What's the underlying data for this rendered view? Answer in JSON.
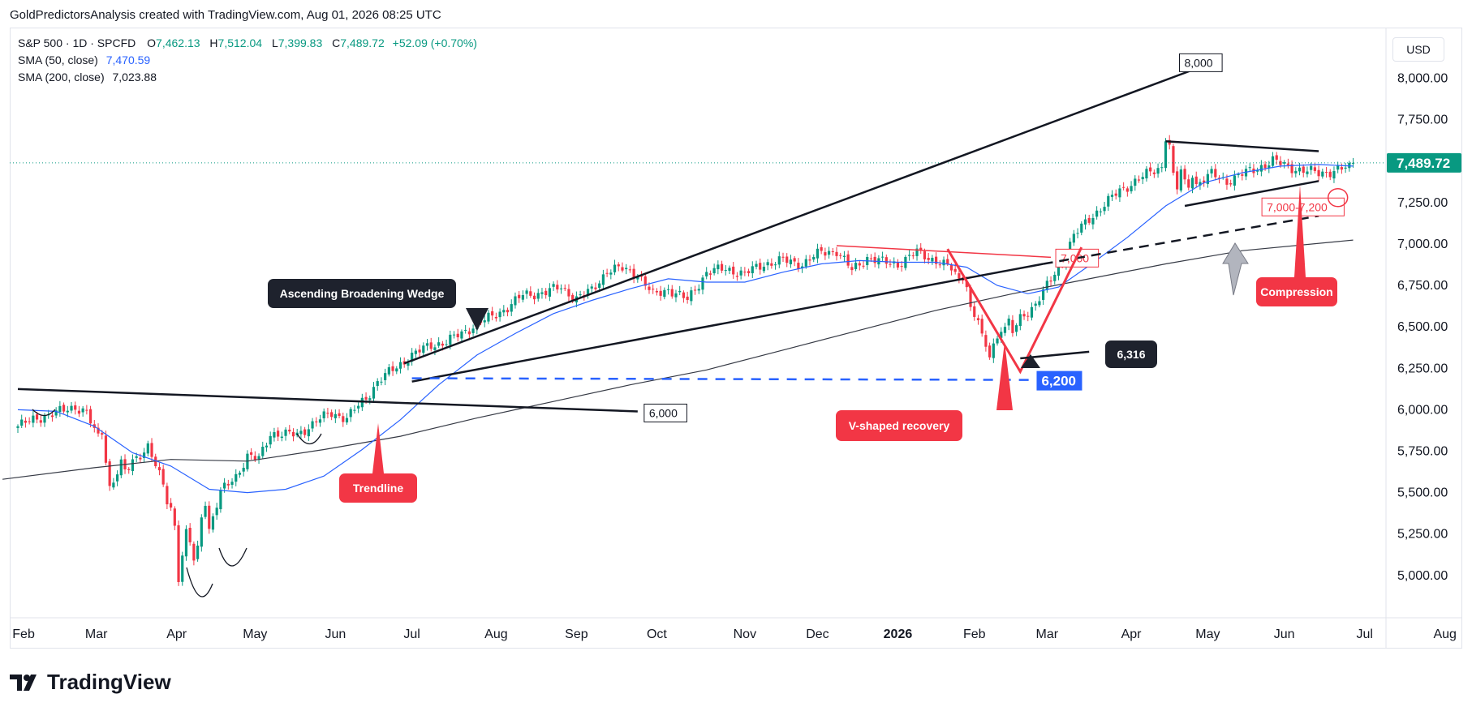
{
  "header": {
    "attribution": "GoldPredictorsAnalysis created with TradingView.com, Aug 01, 2026 08:25 UTC"
  },
  "legend": {
    "symbol": "S&P 500 · 1D · SPCFD",
    "o_label": "O",
    "open": "7,462.13",
    "h_label": "H",
    "high": "7,512.04",
    "l_label": "L",
    "low": "7,399.83",
    "c_label": "C",
    "close": "7,489.72",
    "change": "+52.09 (+0.70%)",
    "sma50_label": "SMA (50, close)",
    "sma50_value": "7,470.59",
    "sma200_label": "SMA (200, close)",
    "sma200_value": "7,023.88"
  },
  "currency": "USD",
  "brand": "TradingView",
  "colors": {
    "up": "#089981",
    "down": "#f23645",
    "sma50": "#2962ff",
    "sma200": "#363a45",
    "annot_red": "#f23645",
    "annot_dark": "#1e222d",
    "annot_blue": "#2962ff"
  },
  "chart_data": {
    "type": "candlestick",
    "title": "S&P 500 · 1D · SPCFD",
    "ylim": [
      4780,
      8340
    ],
    "y_ticks": [
      "8,000.00",
      "7,750.00",
      "7,500.00",
      "7,250.00",
      "7,000.00",
      "6,750.00",
      "6,500.00",
      "6,250.00",
      "6,000.00",
      "5,750.00",
      "5,500.00",
      "5,250.00",
      "5,000.00"
    ],
    "y_tick_values": [
      8000,
      7750,
      7500,
      7250,
      7000,
      6750,
      6500,
      6250,
      6000,
      5750,
      5500,
      5250,
      5000
    ],
    "x_ticks": [
      "Feb",
      "Mar",
      "Apr",
      "May",
      "Jun",
      "Jul",
      "Aug",
      "Sep",
      "Oct",
      "Nov",
      "Dec",
      "2026",
      "Feb",
      "Mar",
      "Apr",
      "May",
      "Jun",
      "Jul",
      "Aug"
    ],
    "x_tick_pos": [
      1.5,
      20.5,
      41.5,
      62,
      83,
      103,
      125,
      146,
      167,
      190,
      209,
      230,
      250,
      269,
      291,
      311,
      331,
      352,
      373
    ],
    "price_label": "7,489.72",
    "price_value": 7489.72,
    "ohlc_anchors": [
      [
        0,
        5900
      ],
      [
        5,
        5950
      ],
      [
        10,
        5980
      ],
      [
        15,
        6020
      ],
      [
        18,
        5980
      ],
      [
        20,
        5870
      ],
      [
        23,
        5760
      ],
      [
        27,
        5560
      ],
      [
        30,
        5690
      ],
      [
        34,
        5780
      ],
      [
        38,
        5540
      ],
      [
        41,
        5280
      ],
      [
        42,
        4950
      ],
      [
        44,
        5100
      ],
      [
        47,
        5350
      ],
      [
        50,
        5280
      ],
      [
        53,
        5500
      ],
      [
        57,
        5600
      ],
      [
        60,
        5720
      ],
      [
        63,
        5700
      ],
      [
        66,
        5860
      ],
      [
        70,
        5850
      ],
      [
        73,
        5850
      ],
      [
        78,
        5930
      ],
      [
        82,
        5980
      ],
      [
        86,
        5950
      ],
      [
        91,
        6070
      ],
      [
        94,
        6170
      ],
      [
        98,
        6240
      ],
      [
        103,
        6330
      ],
      [
        108,
        6390
      ],
      [
        112,
        6410
      ],
      [
        116,
        6460
      ],
      [
        120,
        6520
      ],
      [
        124,
        6560
      ],
      [
        128,
        6620
      ],
      [
        132,
        6690
      ],
      [
        138,
        6710
      ],
      [
        142,
        6740
      ],
      [
        146,
        6670
      ],
      [
        150,
        6720
      ],
      [
        154,
        6840
      ],
      [
        158,
        6850
      ],
      [
        162,
        6820
      ],
      [
        166,
        6690
      ],
      [
        170,
        6730
      ],
      [
        175,
        6660
      ],
      [
        180,
        6830
      ],
      [
        185,
        6850
      ],
      [
        190,
        6820
      ],
      [
        195,
        6880
      ],
      [
        200,
        6900
      ],
      [
        205,
        6880
      ],
      [
        210,
        6950
      ],
      [
        214,
        6960
      ],
      [
        218,
        6840
      ],
      [
        222,
        6920
      ],
      [
        226,
        6890
      ],
      [
        230,
        6880
      ],
      [
        235,
        6950
      ],
      [
        240,
        6900
      ],
      [
        244,
        6850
      ],
      [
        248,
        6720
      ],
      [
        252,
        6560
      ],
      [
        256,
        6350
      ],
      [
        259,
        6420
      ],
      [
        262,
        6550
      ],
      [
        266,
        6640
      ],
      [
        270,
        6780
      ],
      [
        273,
        6900
      ],
      [
        276,
        7050
      ],
      [
        280,
        7150
      ],
      [
        284,
        7240
      ],
      [
        288,
        7320
      ],
      [
        292,
        7380
      ],
      [
        296,
        7430
      ],
      [
        300,
        7480
      ],
      [
        304,
        7510
      ],
      [
        308,
        7360
      ],
      [
        312,
        7420
      ],
      [
        316,
        7380
      ],
      [
        320,
        7420
      ],
      [
        324,
        7460
      ],
      [
        328,
        7500
      ],
      [
        332,
        7470
      ],
      [
        336,
        7440
      ],
      [
        340,
        7430
      ],
      [
        344,
        7440
      ],
      [
        348,
        7462
      ],
      [
        349,
        7490
      ]
    ],
    "dip_overrides": [
      [
        22,
        5850
      ],
      [
        23,
        5680
      ],
      [
        24,
        5540
      ],
      [
        25,
        5560
      ],
      [
        26,
        5610
      ],
      [
        27,
        5700
      ],
      [
        28,
        5640
      ],
      [
        40,
        5410
      ],
      [
        41,
        5300
      ],
      [
        42,
        4960
      ],
      [
        43,
        5120
      ],
      [
        44,
        5280
      ],
      [
        45,
        5200
      ],
      [
        46,
        5090
      ],
      [
        47,
        5180
      ],
      [
        48,
        5350
      ],
      [
        49,
        5420
      ],
      [
        247,
        6780
      ],
      [
        248,
        6740
      ],
      [
        249,
        6620
      ],
      [
        250,
        6560
      ],
      [
        251,
        6540
      ],
      [
        252,
        6460
      ],
      [
        253,
        6380
      ],
      [
        254,
        6316
      ],
      [
        255,
        6400
      ],
      [
        256,
        6430
      ],
      [
        257,
        6470
      ],
      [
        258,
        6500
      ],
      [
        259,
        6550
      ],
      [
        300,
        7620
      ],
      [
        301,
        7600
      ],
      [
        302,
        7430
      ],
      [
        303,
        7330
      ],
      [
        304,
        7450
      ],
      [
        305,
        7390
      ],
      [
        306,
        7340
      ],
      [
        307,
        7400
      ]
    ],
    "sma50_points": [
      [
        0,
        6000
      ],
      [
        10,
        5990
      ],
      [
        20,
        5900
      ],
      [
        30,
        5740
      ],
      [
        40,
        5660
      ],
      [
        50,
        5520
      ],
      [
        60,
        5500
      ],
      [
        70,
        5520
      ],
      [
        80,
        5600
      ],
      [
        90,
        5760
      ],
      [
        100,
        5940
      ],
      [
        110,
        6150
      ],
      [
        120,
        6330
      ],
      [
        130,
        6460
      ],
      [
        140,
        6580
      ],
      [
        150,
        6660
      ],
      [
        160,
        6730
      ],
      [
        170,
        6790
      ],
      [
        180,
        6770
      ],
      [
        190,
        6770
      ],
      [
        200,
        6830
      ],
      [
        210,
        6880
      ],
      [
        220,
        6900
      ],
      [
        230,
        6890
      ],
      [
        240,
        6890
      ],
      [
        248,
        6860
      ],
      [
        256,
        6750
      ],
      [
        264,
        6700
      ],
      [
        272,
        6740
      ],
      [
        280,
        6870
      ],
      [
        290,
        7040
      ],
      [
        300,
        7230
      ],
      [
        310,
        7370
      ],
      [
        320,
        7430
      ],
      [
        330,
        7470
      ],
      [
        340,
        7480
      ],
      [
        349,
        7470
      ]
    ],
    "sma200_points": [
      [
        -4,
        5580
      ],
      [
        20,
        5650
      ],
      [
        40,
        5700
      ],
      [
        60,
        5690
      ],
      [
        80,
        5760
      ],
      [
        100,
        5840
      ],
      [
        120,
        5950
      ],
      [
        140,
        6050
      ],
      [
        160,
        6150
      ],
      [
        180,
        6240
      ],
      [
        200,
        6360
      ],
      [
        220,
        6480
      ],
      [
        240,
        6600
      ],
      [
        260,
        6700
      ],
      [
        280,
        6790
      ],
      [
        300,
        6880
      ],
      [
        320,
        6960
      ],
      [
        349,
        7024
      ]
    ],
    "annotations": [
      {
        "kind": "line",
        "label": "8,000",
        "x1": 101,
        "y1": 6280,
        "x2": 307,
        "y2": 8050
      },
      {
        "kind": "line",
        "label": "6,000",
        "x1": 0,
        "y1": 6125,
        "x2": 162,
        "y2": 5990
      },
      {
        "kind": "line",
        "label": "Ascending Broadening Wedge",
        "x1": 103,
        "y1": 6170,
        "x2": 268,
        "y2": 6880
      },
      {
        "kind": "line",
        "label": "7,000",
        "x1": 214,
        "y1": 6990,
        "x2": 270,
        "y2": 6920
      },
      {
        "kind": "dashed",
        "label": "7,000-7,200",
        "x1": 268,
        "y1": 6880,
        "x2": 340,
        "y2": 7170
      },
      {
        "kind": "dashed",
        "label": "6,200",
        "x1": 103,
        "y1": 6190,
        "x2": 265,
        "y2": 6180
      },
      {
        "kind": "v",
        "label": "V-shaped recovery",
        "points": [
          [
            243,
            6970
          ],
          [
            262,
            6230
          ],
          [
            278,
            6980
          ]
        ]
      },
      {
        "kind": "line",
        "label": "6,316",
        "x1": 262,
        "y1": 6310,
        "x2": 280,
        "y2": 6350
      },
      {
        "kind": "triangle",
        "label": "Compression",
        "top": [
          [
            300,
            7620
          ],
          [
            340,
            7560
          ]
        ],
        "bottom": [
          [
            305,
            7230
          ],
          [
            340,
            7380
          ]
        ]
      },
      {
        "kind": "callout",
        "label": "Trendline"
      }
    ]
  }
}
